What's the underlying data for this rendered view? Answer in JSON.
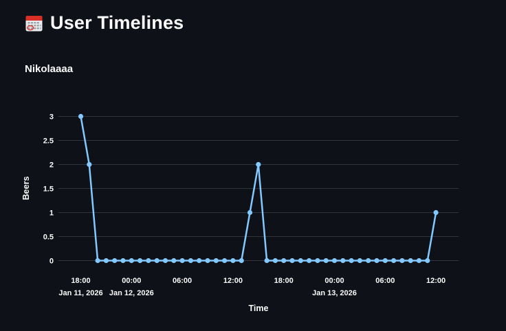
{
  "page": {
    "background_color": "#0e1117",
    "text_color": "#fafafa"
  },
  "header": {
    "title": "User Timelines",
    "icon": "calendar-icon"
  },
  "subheader": {
    "user_name": "Nikolaaaa"
  },
  "chart_data": {
    "type": "line",
    "title": "",
    "xlabel": "Time",
    "ylabel": "Beers",
    "series_name": "Nikolaaaa",
    "line_color": "#83c9ff",
    "marker_color": "#83c9ff",
    "grid_color": "#32353d",
    "grid": true,
    "legend": false,
    "x_start": "Jan 11, 2026 18:00",
    "x_step_hours": 1,
    "ylim": [
      0,
      3
    ],
    "y_ticks": [
      {
        "value": 0,
        "label": "0"
      },
      {
        "value": 0.5,
        "label": "0.5"
      },
      {
        "value": 1,
        "label": "1"
      },
      {
        "value": 1.5,
        "label": "1.5"
      },
      {
        "value": 2,
        "label": "2"
      },
      {
        "value": 2.5,
        "label": "2.5"
      },
      {
        "value": 3,
        "label": "3"
      }
    ],
    "x_ticks": [
      {
        "hour": 0,
        "label": "18:00",
        "date": "Jan 11, 2026"
      },
      {
        "hour": 6,
        "label": "00:00",
        "date": "Jan 12, 2026"
      },
      {
        "hour": 12,
        "label": "06:00",
        "date": ""
      },
      {
        "hour": 18,
        "label": "12:00",
        "date": ""
      },
      {
        "hour": 24,
        "label": "18:00",
        "date": ""
      },
      {
        "hour": 30,
        "label": "00:00",
        "date": "Jan 13, 2026"
      },
      {
        "hour": 36,
        "label": "06:00",
        "date": ""
      },
      {
        "hour": 42,
        "label": "12:00",
        "date": ""
      }
    ],
    "values": [
      3,
      2,
      0,
      0,
      0,
      0,
      0,
      0,
      0,
      0,
      0,
      0,
      0,
      0,
      0,
      0,
      0,
      0,
      0,
      0,
      1,
      2,
      0,
      0,
      0,
      0,
      0,
      0,
      0,
      0,
      0,
      0,
      0,
      0,
      0,
      0,
      0,
      0,
      0,
      0,
      0,
      0,
      1
    ]
  }
}
